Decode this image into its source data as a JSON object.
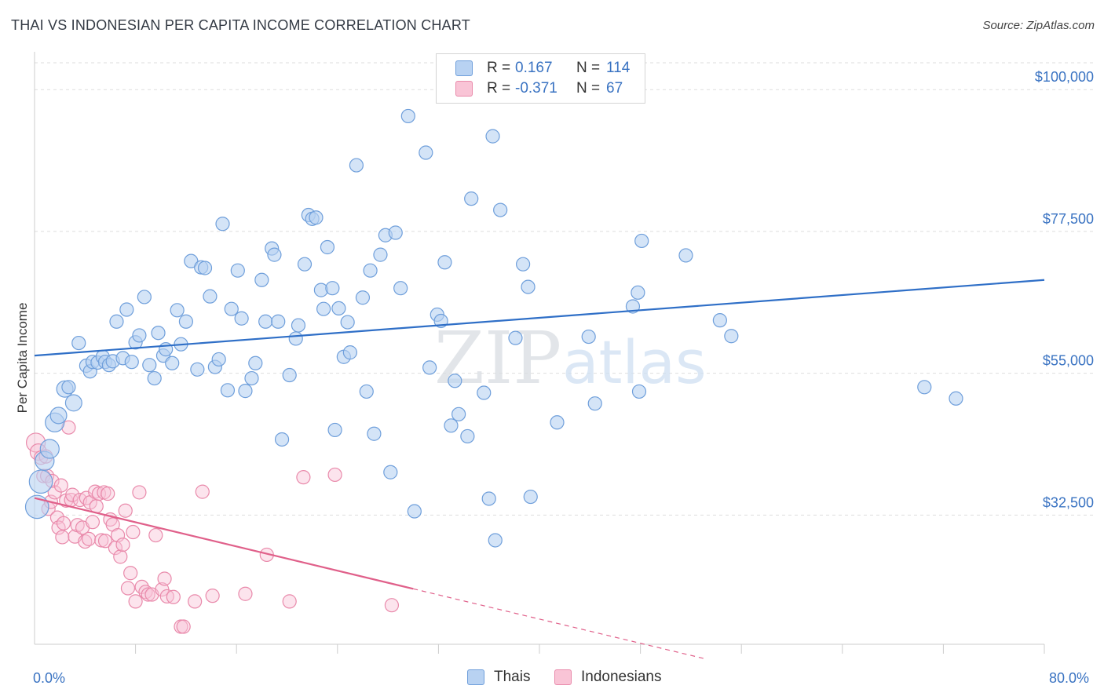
{
  "title": "THAI VS INDONESIAN PER CAPITA INCOME CORRELATION CHART",
  "source": "Source: ZipAtlas.com",
  "watermark": {
    "zip": "ZIP",
    "atlas": "atlas"
  },
  "legend": {
    "r_label": "R =",
    "n_label": "N =",
    "rows": [
      {
        "r": "0.167",
        "n": "114",
        "fill": "#b8d2f2",
        "stroke": "#6f9fdb"
      },
      {
        "r": "-0.371",
        "n": "67",
        "fill": "#f9c4d6",
        "stroke": "#e98aab"
      }
    ]
  },
  "bottom_legend": [
    {
      "label": "Thais",
      "fill": "#b8d2f2",
      "stroke": "#6f9fdb"
    },
    {
      "label": "Indonesians",
      "fill": "#f9c4d6",
      "stroke": "#e98aab"
    }
  ],
  "chart_data": {
    "type": "scatter",
    "ylabel": "Per Capita Income",
    "xlim": [
      0,
      80
    ],
    "ylim": [
      12000,
      106000
    ],
    "x_tick_labels": [
      "0.0%",
      "80.0%"
    ],
    "y_ticks": [
      32500,
      55000,
      77500,
      100000
    ],
    "y_tick_labels": [
      "$32,500",
      "$55,000",
      "$77,500",
      "$100,000"
    ],
    "grid": "horizontal dashed",
    "series": [
      {
        "name": "Thais",
        "color": "#6f9fdb",
        "fill": "#b8d2f2",
        "trend": {
          "x0": 0,
          "y0": 57800,
          "x1": 80,
          "y1": 69800,
          "color": "#2f6fc7"
        },
        "points": [
          [
            0.2,
            33800,
            3
          ],
          [
            0.5,
            37800,
            3
          ],
          [
            0.8,
            41100,
            2
          ],
          [
            1.2,
            43000,
            2
          ],
          [
            1.6,
            47200,
            2
          ],
          [
            1.9,
            48300,
            1.5
          ],
          [
            2.4,
            52500,
            1.5
          ],
          [
            2.7,
            52800,
            1
          ],
          [
            3.1,
            50300,
            1.5
          ],
          [
            3.5,
            59800,
            1
          ],
          [
            4.1,
            56200,
            1
          ],
          [
            4.4,
            55300,
            1
          ],
          [
            4.6,
            56800,
            1
          ],
          [
            5.0,
            56700,
            1
          ],
          [
            5.4,
            57600,
            1
          ],
          [
            5.6,
            56800,
            1
          ],
          [
            5.9,
            56300,
            1
          ],
          [
            6.2,
            56900,
            1
          ],
          [
            6.5,
            63200,
            1
          ],
          [
            7.0,
            57400,
            1
          ],
          [
            7.3,
            65100,
            1
          ],
          [
            7.7,
            56800,
            1
          ],
          [
            8.0,
            59900,
            1
          ],
          [
            8.3,
            61000,
            1
          ],
          [
            8.7,
            67100,
            1
          ],
          [
            9.1,
            56300,
            1
          ],
          [
            9.5,
            54200,
            1
          ],
          [
            9.8,
            61400,
            1
          ],
          [
            10.2,
            57800,
            1
          ],
          [
            10.4,
            58800,
            1
          ],
          [
            10.9,
            56600,
            1
          ],
          [
            11.3,
            65000,
            1
          ],
          [
            11.6,
            59600,
            1
          ],
          [
            12.0,
            63200,
            1
          ],
          [
            12.4,
            72800,
            1
          ],
          [
            12.9,
            55600,
            1
          ],
          [
            13.2,
            71800,
            1
          ],
          [
            13.5,
            71700,
            1
          ],
          [
            13.9,
            67200,
            1
          ],
          [
            14.3,
            56000,
            1
          ],
          [
            14.6,
            57200,
            1
          ],
          [
            14.9,
            78700,
            1
          ],
          [
            15.3,
            52300,
            1
          ],
          [
            15.6,
            65200,
            1
          ],
          [
            16.1,
            71300,
            1
          ],
          [
            16.4,
            63700,
            1
          ],
          [
            16.7,
            52200,
            1
          ],
          [
            17.2,
            54200,
            1
          ],
          [
            17.5,
            56600,
            1
          ],
          [
            18.0,
            69800,
            1
          ],
          [
            18.3,
            63200,
            1
          ],
          [
            18.8,
            74800,
            1
          ],
          [
            19.0,
            73800,
            1
          ],
          [
            19.3,
            63200,
            1
          ],
          [
            19.6,
            44500,
            1
          ],
          [
            20.2,
            54700,
            1
          ],
          [
            20.7,
            60500,
            1
          ],
          [
            20.9,
            62600,
            1
          ],
          [
            21.4,
            72300,
            1
          ],
          [
            21.7,
            80100,
            1
          ],
          [
            22.0,
            79500,
            1
          ],
          [
            22.3,
            79700,
            1
          ],
          [
            22.7,
            68200,
            1
          ],
          [
            22.9,
            65200,
            1
          ],
          [
            23.2,
            75000,
            1
          ],
          [
            23.6,
            68500,
            1
          ],
          [
            23.8,
            46000,
            1
          ],
          [
            24.1,
            65300,
            1
          ],
          [
            24.5,
            57600,
            1
          ],
          [
            24.8,
            63100,
            1
          ],
          [
            25.0,
            58300,
            1
          ],
          [
            25.5,
            88000,
            1
          ],
          [
            26.0,
            67000,
            1
          ],
          [
            26.3,
            52100,
            1
          ],
          [
            26.6,
            71300,
            1
          ],
          [
            26.9,
            45400,
            1
          ],
          [
            27.4,
            73800,
            1
          ],
          [
            27.8,
            76900,
            1
          ],
          [
            28.2,
            39300,
            1
          ],
          [
            28.6,
            77300,
            1
          ],
          [
            29.0,
            68500,
            1
          ],
          [
            29.6,
            95800,
            1
          ],
          [
            30.1,
            33100,
            1
          ],
          [
            31.0,
            90000,
            1
          ],
          [
            31.3,
            55900,
            1
          ],
          [
            31.9,
            64300,
            1
          ],
          [
            32.2,
            63300,
            1
          ],
          [
            32.5,
            72600,
            1
          ],
          [
            33.0,
            46700,
            1
          ],
          [
            33.3,
            53800,
            1
          ],
          [
            33.6,
            48500,
            1
          ],
          [
            34.3,
            45000,
            1
          ],
          [
            34.6,
            82700,
            1
          ],
          [
            35.6,
            51900,
            1
          ],
          [
            36.0,
            35100,
            1
          ],
          [
            36.3,
            92600,
            1
          ],
          [
            36.5,
            28500,
            1
          ],
          [
            36.9,
            80900,
            1
          ],
          [
            38.1,
            60600,
            1
          ],
          [
            38.7,
            72300,
            1
          ],
          [
            39.1,
            68700,
            1
          ],
          [
            39.3,
            35400,
            1
          ],
          [
            41.4,
            47200,
            1
          ],
          [
            43.9,
            60800,
            1
          ],
          [
            44.4,
            50200,
            1
          ],
          [
            47.4,
            65600,
            1
          ],
          [
            47.8,
            67800,
            1
          ],
          [
            47.9,
            52100,
            1
          ],
          [
            48.1,
            76000,
            1
          ],
          [
            51.6,
            73700,
            1
          ],
          [
            54.3,
            63400,
            1
          ],
          [
            55.2,
            60900,
            1
          ],
          [
            70.5,
            52800,
            1
          ],
          [
            73.0,
            51000,
            1
          ]
        ]
      },
      {
        "name": "Indonesians",
        "color": "#e98aab",
        "fill": "#f9c4d6",
        "trend": {
          "x0": 0,
          "y0": 35200,
          "x1": 30,
          "y1": 20800,
          "dashed_to_x": 53,
          "color": "#e0608a"
        },
        "points": [
          [
            0.1,
            44000,
            2
          ],
          [
            0.3,
            42500,
            1.5
          ],
          [
            0.5,
            41600,
            1
          ],
          [
            0.7,
            38700,
            1
          ],
          [
            0.9,
            41800,
            1
          ],
          [
            1.0,
            38700,
            1
          ],
          [
            1.1,
            33500,
            1
          ],
          [
            1.3,
            34600,
            1
          ],
          [
            1.4,
            37900,
            1
          ],
          [
            1.6,
            36100,
            1
          ],
          [
            1.8,
            32100,
            1
          ],
          [
            1.9,
            30500,
            1
          ],
          [
            2.1,
            37200,
            1
          ],
          [
            2.2,
            29000,
            1
          ],
          [
            2.3,
            31200,
            1
          ],
          [
            2.5,
            34800,
            1
          ],
          [
            2.7,
            46400,
            1
          ],
          [
            2.9,
            34900,
            1
          ],
          [
            3.0,
            35700,
            1
          ],
          [
            3.2,
            29100,
            1
          ],
          [
            3.4,
            30900,
            1
          ],
          [
            3.6,
            34900,
            1
          ],
          [
            3.8,
            30500,
            1
          ],
          [
            4.0,
            28300,
            1
          ],
          [
            4.1,
            35200,
            1
          ],
          [
            4.3,
            28700,
            1
          ],
          [
            4.4,
            34500,
            1
          ],
          [
            4.6,
            31400,
            1
          ],
          [
            4.8,
            36200,
            1
          ],
          [
            4.9,
            33900,
            1
          ],
          [
            5.1,
            35900,
            1
          ],
          [
            5.3,
            28500,
            1
          ],
          [
            5.5,
            36100,
            1
          ],
          [
            5.6,
            28400,
            1
          ],
          [
            5.8,
            35900,
            1
          ],
          [
            6.0,
            31800,
            1
          ],
          [
            6.2,
            31000,
            1
          ],
          [
            6.4,
            27300,
            1
          ],
          [
            6.6,
            29300,
            1
          ],
          [
            6.8,
            25900,
            1
          ],
          [
            7.0,
            27800,
            1
          ],
          [
            7.2,
            33200,
            1
          ],
          [
            7.4,
            20900,
            1
          ],
          [
            7.6,
            23300,
            1
          ],
          [
            7.8,
            29800,
            1
          ],
          [
            8.0,
            18800,
            1
          ],
          [
            8.3,
            36100,
            1
          ],
          [
            8.5,
            21100,
            1
          ],
          [
            8.8,
            20300,
            1
          ],
          [
            9.0,
            19900,
            1
          ],
          [
            9.3,
            19900,
            1
          ],
          [
            9.6,
            29300,
            1
          ],
          [
            10.1,
            20700,
            1
          ],
          [
            10.3,
            22400,
            1
          ],
          [
            10.5,
            19600,
            1
          ],
          [
            11.0,
            19500,
            1
          ],
          [
            11.6,
            14800,
            1
          ],
          [
            11.8,
            14800,
            1
          ],
          [
            12.7,
            18800,
            1
          ],
          [
            13.3,
            36200,
            1
          ],
          [
            14.1,
            19700,
            1
          ],
          [
            16.7,
            20000,
            1
          ],
          [
            18.4,
            26200,
            1
          ],
          [
            20.2,
            18800,
            1
          ],
          [
            21.3,
            38500,
            1
          ],
          [
            23.8,
            38900,
            1
          ],
          [
            28.3,
            18200,
            1
          ]
        ]
      }
    ]
  }
}
